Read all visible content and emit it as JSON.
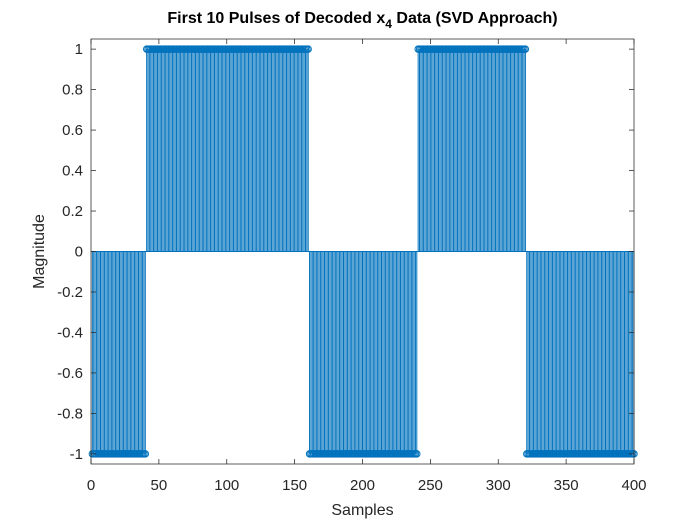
{
  "chart_data": {
    "type": "stem",
    "title": {
      "prefix": "First 10 Pulses of Decoded x",
      "subscript": "4",
      "suffix": " Data (SVD Approach)"
    },
    "xlabel": "Samples",
    "ylabel": "Magnitude",
    "xlim": [
      0,
      400
    ],
    "ylim": [
      -1.05,
      1.05
    ],
    "xticks": [
      0,
      50,
      100,
      150,
      200,
      250,
      300,
      350,
      400
    ],
    "yticks": [
      -1,
      -0.8,
      -0.6,
      -0.4,
      -0.2,
      0,
      0.2,
      0.4,
      0.6,
      0.8,
      1
    ],
    "ytick_labels": [
      "-1",
      "-0.8",
      "-0.6",
      "-0.4",
      "-0.2",
      "0",
      "0.2",
      "0.4",
      "0.6",
      "0.8",
      "1"
    ],
    "xtick_labels": [
      "0",
      "50",
      "100",
      "150",
      "200",
      "250",
      "300",
      "350",
      "400"
    ],
    "series": [
      {
        "color": "#0072BD",
        "marker": "circle",
        "x_start": 1,
        "x_end": 400,
        "x_step": 1,
        "segments": [
          {
            "from": 1,
            "to": 40,
            "value": -1
          },
          {
            "from": 41,
            "to": 160,
            "value": 1
          },
          {
            "from": 161,
            "to": 240,
            "value": -1
          },
          {
            "from": 241,
            "to": 320,
            "value": 1
          },
          {
            "from": 321,
            "to": 400,
            "value": -1
          }
        ]
      }
    ],
    "grid": false,
    "box": true
  }
}
